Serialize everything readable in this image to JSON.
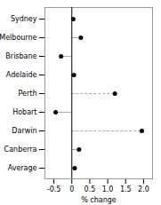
{
  "chart_data": {
    "type": "lollipop",
    "orientation": "horizontal",
    "categories": [
      "Sydney",
      "Melbourne",
      "Brisbane",
      "Adelaide",
      "Perth",
      "Hobart",
      "Darwin",
      "Canberra",
      "Average"
    ],
    "values": [
      0.04,
      0.25,
      -0.3,
      0.06,
      1.2,
      -0.45,
      1.95,
      0.2,
      0.08
    ],
    "line_style": [
      "solid",
      "solid",
      "solid",
      "solid",
      "dashed",
      "solid",
      "dashed",
      "solid",
      "solid"
    ],
    "xlabel": "% change",
    "xlim": [
      -0.75,
      2.25
    ],
    "xticks": [
      -0.5,
      0,
      0.5,
      {
        "value": 1,
        "label": "1.0"
      },
      {
        "value": 1.5,
        "label": "1.5"
      },
      {
        "value": 2,
        "label": "2.0"
      }
    ],
    "grid": false
  }
}
